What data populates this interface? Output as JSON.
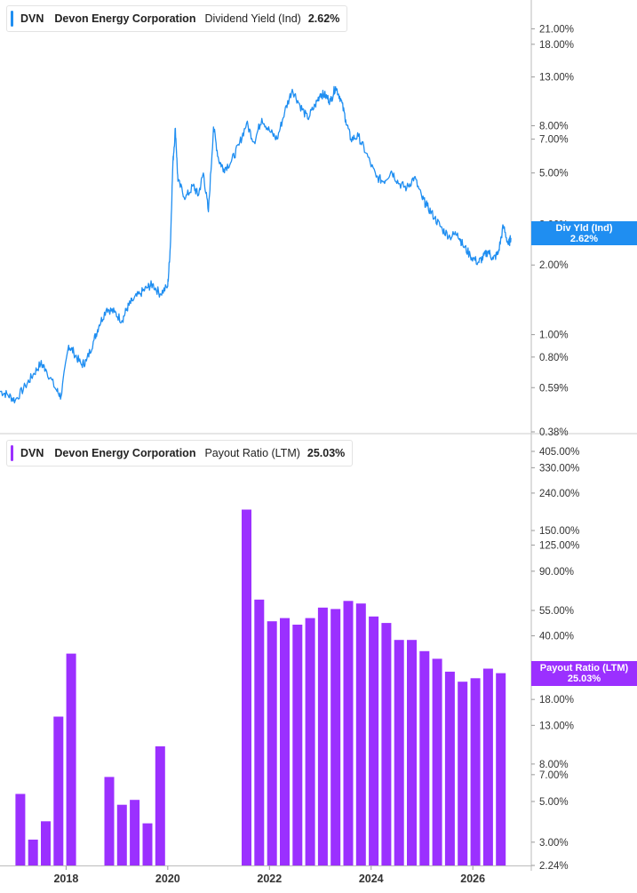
{
  "colors": {
    "yield": "#1f8ef1",
    "payout": "#9b30ff",
    "grid": "#d9d9d9",
    "axis_text": "#333333"
  },
  "top_legend": {
    "ticker": "DVN",
    "company": "Devon Energy Corporation",
    "metric": "Dividend Yield (Ind)",
    "value": "2.62%"
  },
  "bottom_legend": {
    "ticker": "DVN",
    "company": "Devon Energy Corporation",
    "metric": "Payout Ratio (LTM)",
    "value": "25.03%"
  },
  "top_tag": {
    "label": "Div Yld (Ind)",
    "value": "2.62%"
  },
  "bottom_tag": {
    "label": "Payout Ratio (LTM)",
    "value": "25.03%"
  },
  "chart_data": [
    {
      "type": "line",
      "scale": "log",
      "series": [
        {
          "name": "Dividend Yield (Ind)",
          "x": [
            2016.7,
            2016.85,
            2017.0,
            2017.2,
            2017.35,
            2017.5,
            2017.6,
            2017.8,
            2017.9,
            2018.05,
            2018.15,
            2018.3,
            2018.4,
            2018.55,
            2018.65,
            2018.8,
            2018.95,
            2019.1,
            2019.2,
            2019.3,
            2019.45,
            2019.6,
            2019.7,
            2019.85,
            2020.0,
            2020.05,
            2020.1,
            2020.15,
            2020.2,
            2020.35,
            2020.5,
            2020.6,
            2020.7,
            2020.8,
            2020.9,
            2021.0,
            2021.1,
            2021.25,
            2021.4,
            2021.55,
            2021.7,
            2021.85,
            2022.0,
            2022.15,
            2022.3,
            2022.45,
            2022.6,
            2022.75,
            2022.9,
            2023.0,
            2023.1,
            2023.2,
            2023.3,
            2023.4,
            2023.5,
            2023.6,
            2023.75,
            2023.9,
            2024.1,
            2024.25,
            2024.4,
            2024.55,
            2024.7,
            2024.85,
            2025.0,
            2025.1,
            2025.25,
            2025.4,
            2025.55,
            2025.7,
            2025.8,
            2025.95,
            2026.1,
            2026.2,
            2026.3,
            2026.4,
            2026.5,
            2026.6,
            2026.7,
            2026.75
          ],
          "values": [
            0.57,
            0.55,
            0.52,
            0.6,
            0.67,
            0.75,
            0.71,
            0.58,
            0.54,
            0.9,
            0.84,
            0.74,
            0.77,
            0.95,
            1.1,
            1.3,
            1.25,
            1.15,
            1.3,
            1.4,
            1.5,
            1.6,
            1.65,
            1.5,
            1.62,
            2.4,
            5.5,
            7.8,
            4.6,
            3.9,
            4.4,
            4.0,
            5.0,
            3.4,
            7.9,
            5.7,
            5.2,
            5.6,
            6.6,
            8.2,
            6.8,
            8.6,
            7.6,
            7.0,
            9.2,
            11.5,
            9.8,
            8.6,
            9.8,
            11.0,
            10.8,
            10.2,
            11.8,
            10.5,
            8.5,
            7.0,
            7.2,
            6.1,
            4.8,
            4.6,
            5.1,
            4.5,
            4.3,
            4.8,
            3.9,
            3.6,
            3.2,
            2.85,
            2.65,
            2.75,
            2.45,
            2.2,
            2.05,
            2.15,
            2.3,
            2.12,
            2.25,
            2.95,
            2.45,
            2.62
          ]
        }
      ],
      "y_ticks": [
        "21.00%",
        "18.00%",
        "13.00%",
        "8.00%",
        "7.00%",
        "5.00%",
        "3.00%",
        "2.00%",
        "1.00%",
        "0.80%",
        "0.59%",
        "0.38%"
      ],
      "y_tick_values": [
        21,
        18,
        13,
        8,
        7,
        5,
        3,
        2,
        1,
        0.8,
        0.59,
        0.38
      ],
      "ylim": [
        0.38,
        27
      ]
    },
    {
      "type": "bar",
      "scale": "log",
      "series": [
        {
          "name": "Payout Ratio (LTM)",
          "x": [
            2017.1,
            2017.35,
            2017.6,
            2017.85,
            2018.1,
            2018.85,
            2019.1,
            2019.35,
            2019.6,
            2019.85,
            2021.55,
            2021.8,
            2022.05,
            2022.3,
            2022.55,
            2022.8,
            2023.05,
            2023.3,
            2023.55,
            2023.8,
            2024.05,
            2024.3,
            2024.55,
            2024.8,
            2025.05,
            2025.3,
            2025.55,
            2025.8,
            2026.05,
            2026.3,
            2026.55
          ],
          "values": [
            5.5,
            3.1,
            3.9,
            14.5,
            32,
            6.8,
            4.8,
            5.1,
            3.8,
            10.0,
            195,
            63,
            48,
            50,
            46,
            50,
            57,
            56,
            62,
            60,
            51,
            47,
            38,
            38,
            33,
            30,
            25.5,
            22.5,
            23.5,
            26.5,
            25.03
          ]
        }
      ],
      "y_ticks": [
        "405.00%",
        "330.00%",
        "240.00%",
        "150.00%",
        "125.00%",
        "90.00%",
        "55.00%",
        "40.00%",
        "18.00%",
        "13.00%",
        "8.00%",
        "7.00%",
        "5.00%",
        "3.00%",
        "2.24%"
      ],
      "y_tick_values": [
        405,
        330,
        240,
        150,
        125,
        90,
        55,
        40,
        18,
        13,
        8,
        7,
        5,
        3,
        2.24
      ],
      "ylim": [
        2.24,
        405
      ]
    }
  ],
  "x_axis": {
    "ticks": [
      "2018",
      "2020",
      "2022",
      "2024",
      "2026"
    ],
    "tick_values": [
      2018,
      2020,
      2022,
      2024,
      2026
    ],
    "xlim": [
      2016.7,
      2027.15
    ]
  }
}
